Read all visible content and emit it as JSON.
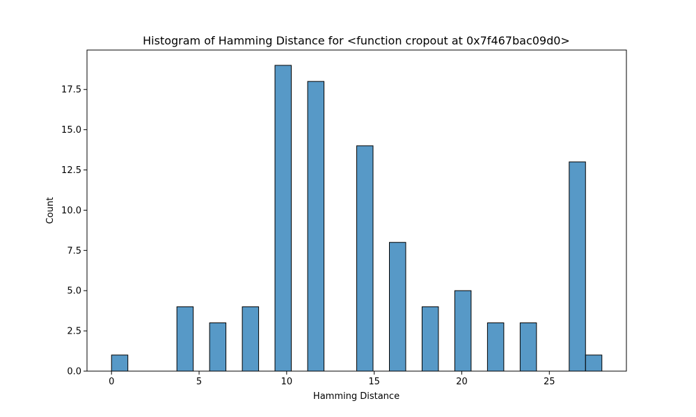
{
  "chart_data": {
    "type": "bar",
    "title": "Histogram of Hamming Distance for <function cropout at 0x7f467bac09d0>",
    "xlabel": "Hamming Distance",
    "ylabel": "Count",
    "xlim": [
      -1.4,
      29.4
    ],
    "ylim": [
      0,
      19.95
    ],
    "bin_width": 0.933,
    "bars": [
      {
        "x0": 0.0,
        "count": 1
      },
      {
        "x0": 3.733,
        "count": 4
      },
      {
        "x0": 5.6,
        "count": 3
      },
      {
        "x0": 7.467,
        "count": 4
      },
      {
        "x0": 9.333,
        "count": 19
      },
      {
        "x0": 11.2,
        "count": 18
      },
      {
        "x0": 14.0,
        "count": 14
      },
      {
        "x0": 15.867,
        "count": 8
      },
      {
        "x0": 17.733,
        "count": 4
      },
      {
        "x0": 19.6,
        "count": 5
      },
      {
        "x0": 21.467,
        "count": 3
      },
      {
        "x0": 23.333,
        "count": 3
      },
      {
        "x0": 26.133,
        "count": 13
      },
      {
        "x0": 27.067,
        "count": 1
      }
    ],
    "x_ticks": [
      0,
      5,
      10,
      15,
      20,
      25
    ],
    "x_tick_labels": [
      "0",
      "5",
      "10",
      "15",
      "20",
      "25"
    ],
    "y_ticks": [
      0,
      2.5,
      5,
      7.5,
      10,
      12.5,
      15,
      17.5
    ],
    "y_tick_labels": [
      "0.0",
      "2.5",
      "5.0",
      "7.5",
      "10.0",
      "12.5",
      "15.0",
      "17.5"
    ],
    "grid": false,
    "colors": {
      "bar_fill": "#5799c7",
      "bar_edge": "#000000"
    }
  }
}
